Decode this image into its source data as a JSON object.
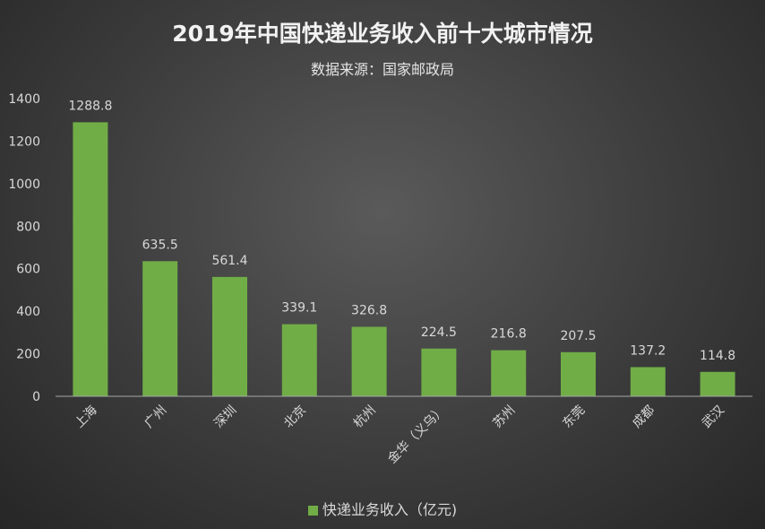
{
  "chart_data": {
    "type": "bar",
    "title": "2019年中国快递业务收入前十大城市情况",
    "subtitle": "数据来源：国家邮政局",
    "categories": [
      "上海",
      "广州",
      "深圳",
      "北京",
      "杭州",
      "金华（义乌）",
      "苏州",
      "东莞",
      "成都",
      "武汉"
    ],
    "series": [
      {
        "name": "快递业务收入（亿元)",
        "values": [
          1288.8,
          635.5,
          561.4,
          339.1,
          326.8,
          224.5,
          216.8,
          207.5,
          137.2,
          114.8
        ]
      }
    ],
    "value_labels": [
      "1288.8",
      "635.5",
      "561.4",
      "339.1",
      "326.8",
      "224.5",
      "216.8",
      "207.5",
      "137.2",
      "114.8"
    ],
    "yticks": [
      "0",
      "200",
      "400",
      "600",
      "800",
      "1000",
      "1200",
      "1400"
    ],
    "ylim": [
      0,
      1400
    ],
    "grid": false,
    "legend_position": "bottom",
    "colors": {
      "bar": "#70ad47"
    }
  }
}
